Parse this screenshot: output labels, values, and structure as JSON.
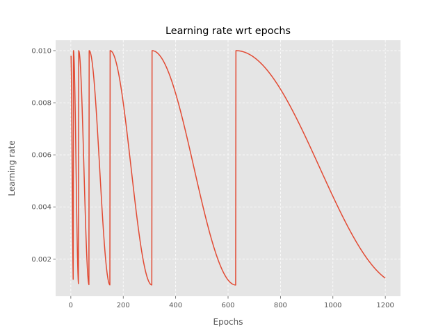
{
  "chart_data": {
    "type": "line",
    "title": "Learning rate wrt epochs",
    "xlabel": "Epochs",
    "ylabel": "Learning rate",
    "xlim": [
      -58,
      1258
    ],
    "ylim": [
      0.00057,
      0.0104
    ],
    "xticks": [
      0,
      200,
      400,
      600,
      800,
      1000,
      1200
    ],
    "xtick_labels": [
      "0",
      "200",
      "400",
      "600",
      "800",
      "1000",
      "1200"
    ],
    "yticks": [
      0.002,
      0.004,
      0.006,
      0.008,
      0.01
    ],
    "ytick_labels": [
      "0.002",
      "0.004",
      "0.006",
      "0.008",
      "0.010"
    ],
    "grid": true,
    "colors": {
      "line": "#e24a33",
      "plot_bg": "#e5e5e5",
      "grid": "#ffffff",
      "text": "#555555"
    },
    "schedule": {
      "kind": "cosine annealing with warm restarts",
      "lr_max": 0.01,
      "lr_min": 0.001,
      "first_start_lr": 0.0098,
      "cycles": [
        {
          "start": 0,
          "end": 10
        },
        {
          "start": 10,
          "end": 30
        },
        {
          "start": 30,
          "end": 70
        },
        {
          "start": 70,
          "end": 150
        },
        {
          "start": 150,
          "end": 310
        },
        {
          "start": 310,
          "end": 630
        },
        {
          "start": 630,
          "end": 1270
        }
      ],
      "last_epoch": 1200
    }
  }
}
